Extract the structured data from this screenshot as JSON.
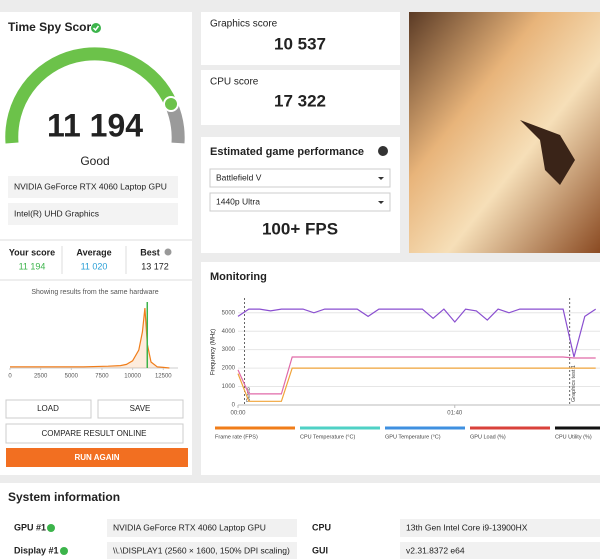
{
  "score_panel": {
    "title": "Time Spy Score",
    "score": "11 194",
    "rating": "Good",
    "gpu": "NVIDIA GeForce RTX 4060 Laptop GPU",
    "igpu": "Intel(R) UHD Graphics",
    "your_score_label": "Your score",
    "your_score": "11 194",
    "average_label": "Average",
    "average": "11 020",
    "best_label": "Best",
    "best": "13 172",
    "hardware_note": "Showing results from the same hardware"
  },
  "histogram": {
    "type": "area",
    "color": "#f07d1a",
    "marker_color": "#3cb44b",
    "x": [
      0,
      2000,
      4000,
      6000,
      8000,
      9000,
      9500,
      10000,
      10500,
      10800,
      11000,
      11200,
      11500,
      12000,
      12500,
      13000
    ],
    "values": [
      2,
      2,
      2,
      2,
      3,
      4,
      6,
      12,
      30,
      60,
      100,
      40,
      10,
      2,
      1,
      0
    ],
    "score_marker": 11194,
    "xlim": [
      0,
      13700
    ],
    "ylim": [
      0,
      110
    ],
    "xticks": [
      0,
      2500,
      5000,
      7500,
      10000,
      12500
    ]
  },
  "buttons": {
    "load": "LOAD",
    "save": "SAVE",
    "compare": "COMPARE RESULT ONLINE",
    "run": "RUN AGAIN"
  },
  "graphics": {
    "label": "Graphics score",
    "value": "10 537"
  },
  "cpu": {
    "label": "CPU score",
    "value": "17 322"
  },
  "game": {
    "title": "Estimated game performance",
    "game": "Battlefield V",
    "resolution": "1440p Ultra",
    "fps": "100+ FPS"
  },
  "monitoring": {
    "title": "Monitoring",
    "type": "line",
    "y_label": "Frequency (MHz)",
    "x": [
      0,
      5,
      10,
      15,
      20,
      25,
      30,
      35,
      40,
      45,
      50,
      55,
      60,
      65,
      70,
      75,
      80,
      85,
      90,
      95,
      100,
      105,
      110,
      115,
      120,
      125,
      130,
      135,
      140,
      145,
      150,
      155,
      160,
      165
    ],
    "series": [
      {
        "color": "#8a4fd0",
        "values": [
          4800,
          5200,
          5200,
          5100,
          5200,
          5200,
          5200,
          5000,
          5200,
          5200,
          5200,
          5200,
          4800,
          5200,
          5200,
          5200,
          5200,
          5200,
          4700,
          5200,
          4500,
          5200,
          5100,
          4600,
          5200,
          5000,
          5200,
          5200,
          5200,
          5200,
          5200,
          2600,
          4800,
          5200
        ]
      },
      {
        "color": "#e06aa8",
        "values": [
          1900,
          600,
          600,
          600,
          600,
          2600,
          2600,
          2600,
          2600,
          2600,
          2600,
          2600,
          2600,
          2600,
          2600,
          2600,
          2600,
          2600,
          2600,
          2600,
          2600,
          2600,
          2600,
          2600,
          2600,
          2600,
          2600,
          2600,
          2600,
          2600,
          2600,
          2550,
          2550,
          2550
        ]
      },
      {
        "color": "#f0a43a",
        "values": [
          1700,
          200,
          200,
          200,
          200,
          2000,
          2000,
          2000,
          2000,
          2000,
          2000,
          2000,
          2000,
          2000,
          2000,
          2000,
          2000,
          2000,
          2000,
          2000,
          2000,
          2000,
          2000,
          2000,
          2000,
          2000,
          2000,
          2000,
          2000,
          2000,
          2000,
          2000,
          2000,
          2000
        ]
      }
    ],
    "annotations": [
      {
        "x": 3,
        "label": "Demo"
      },
      {
        "x": 153,
        "label": "Graphics test 1"
      }
    ],
    "xlim": [
      0,
      167
    ],
    "ylim": [
      0,
      5800
    ],
    "yticks": [
      0,
      1000,
      2000,
      3000,
      4000,
      5000
    ],
    "xticks": [
      {
        "value": 0,
        "label": "00:00"
      },
      {
        "value": 100,
        "label": "01:40"
      }
    ],
    "grid": true,
    "legend": [
      {
        "name": "Frame rate (FPS)",
        "color": "#f07d1a"
      },
      {
        "name": "CPU Temperature (°C)",
        "color": "#4fd1c5"
      },
      {
        "name": "GPU Temperature (°C)",
        "color": "#3f90e0"
      },
      {
        "name": "GPU Load (%)",
        "color": "#d9413b"
      },
      {
        "name": "CPU Utility (%)",
        "color": "#111111"
      }
    ]
  },
  "system_info": {
    "title": "System information",
    "gpu_label": "GPU #1",
    "gpu": "NVIDIA GeForce RTX 4060 Laptop GPU",
    "display_label": "Display #1",
    "display": "\\\\.\\DISPLAY1 (2560 × 1600, 150% DPI scaling)",
    "cpu_label": "CPU",
    "cpu": "13th Gen Intel Core i9-13900HX",
    "gui_label": "GUI",
    "gui": "v2.31.8372 e64"
  }
}
